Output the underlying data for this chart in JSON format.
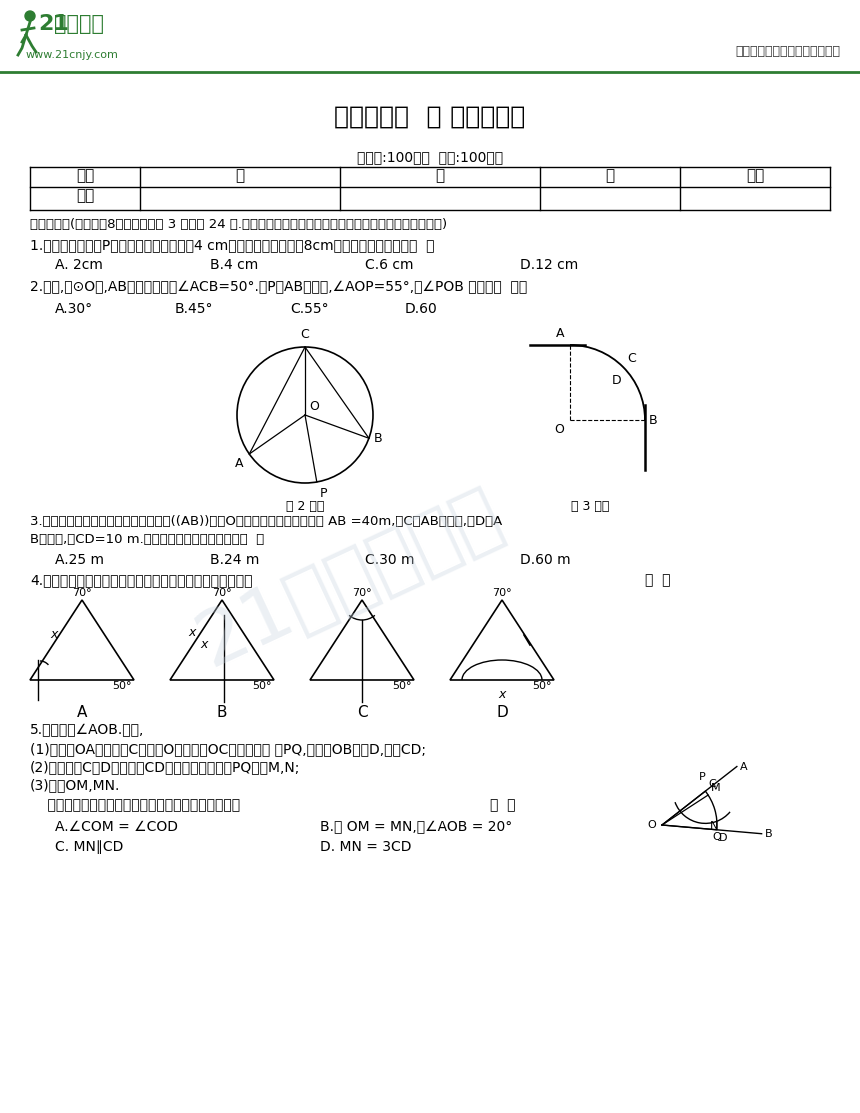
{
  "title": "第二十四章  圆 综合测试卷",
  "header_right": "中小学教育资源及组卷应用平台",
  "time_info": "（时间:100分钟  满分:100分）",
  "table_headers": [
    "题号",
    "一",
    "二",
    "三",
    "总分"
  ],
  "section1": "一、选择题(本大题兲8小题，每小题 3 分，共 24 分.在每小题给出的四个选项中，只有一项是符合题目要求的)",
  "q1": "1.已知，圆内一点P到圆上最近点的距离为4 cm，到最远点的距离为8cm，则这个圆的半径为（  ）",
  "q1_opts": [
    "A. 2cm",
    "B.4 cm",
    "C.6 cm",
    "D.12 cm"
  ],
  "q2": "2.如图,在⊙O中,AB所对的圆周角∠ACB=50°.若P为AB上一点,∠AOP=55°,则∠POB 的度数为  （）",
  "q2_opts": [
    "A.30°",
    "B.45°",
    "C.55°",
    "D.60"
  ],
  "fig2_label": "第 2 题图",
  "fig3_label": "第 3 题图",
  "q3_line1": "3.如图，一条公路的转弯处是一段圆弧((AB))，点O是这段弧所在圆的圆心， AB =40m,点C是AB的中点,点D是A",
  "q3_line2": "B的中点,且CD=10 m.则这段弯路所在圆的半径为（  ）",
  "q3_opts": [
    "A.25 m",
    "B.24 m",
    "C.30 m",
    "D.60 m"
  ],
  "q4": "4.根据圆规作图的痕迹，可用直尺成功找到三角形外心的是",
  "q4_right": "（  ）",
  "q5_title": "5.已知锐角∠AOB.如图,",
  "q5_1": "(1)在射线OA上取一点C，以点O为圆心，OC长为半径作 ⿯PQ,交射线OB于点D,连接CD;",
  "q5_2": "(2)分别以点C，D为圆心，CD长为半径作弧，交PQ于点M,N;",
  "q5_3": "(3)连接OM,MN.",
  "q5_q": "    根据以上作图过程及所作图形，下列结论中错误的是",
  "q5_right": "（  ）",
  "q5_A": "A.∠COM = ∠COD",
  "q5_B": "B.若 OM = MN,则∠AOB = 20°",
  "q5_C": "C. MN∥CD",
  "q5_D": "D. MN = 3CD",
  "logo_text1": "21",
  "logo_text2": "世纪教育",
  "logo_url": "www.21cnjy.com",
  "bg": "#ffffff",
  "black": "#000000",
  "green": "#2e7d32",
  "gray_watermark": "#c8d4e0"
}
